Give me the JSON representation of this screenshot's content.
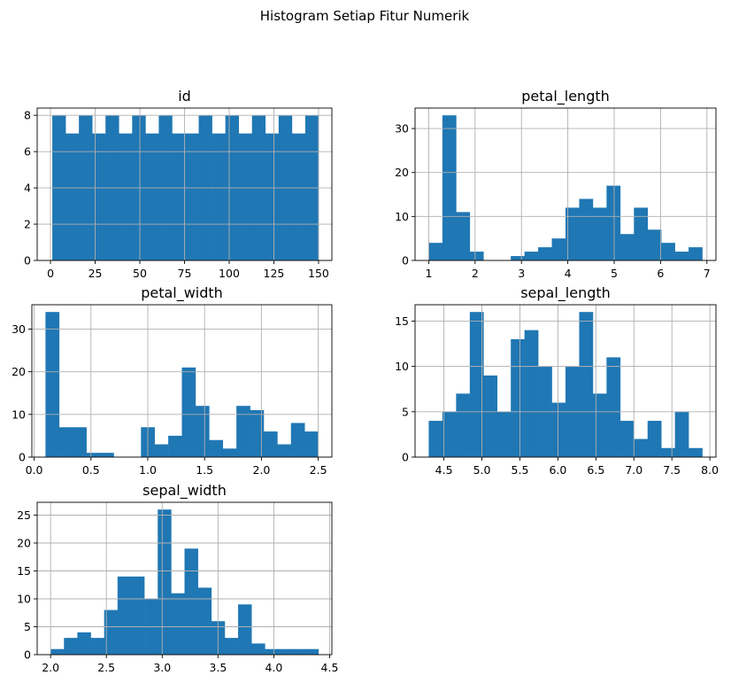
{
  "figure_title": "Histogram Setiap Fitur Numerik",
  "style": {
    "bar_color": "#1f77b4",
    "grid_color": "#b0b0b0",
    "background": "#ffffff"
  },
  "chart_data": [
    {
      "type": "bar",
      "title": "id",
      "grid": true,
      "xlim": [
        -7.45,
        157.45
      ],
      "ylim": [
        0,
        8.4
      ],
      "bin_edges": [
        1,
        8.45,
        15.9,
        23.35,
        30.8,
        38.25,
        45.7,
        53.15,
        60.6,
        68.05,
        75.5,
        82.95,
        90.4,
        97.85,
        105.3,
        112.75,
        120.2,
        127.65,
        135.1,
        142.55,
        150
      ],
      "counts": [
        8,
        7,
        8,
        7,
        8,
        7,
        8,
        7,
        8,
        7,
        7,
        8,
        7,
        8,
        7,
        8,
        7,
        8,
        7,
        8
      ],
      "xticks": [
        0,
        25,
        50,
        75,
        100,
        125,
        150
      ],
      "xtick_labels": [
        "0",
        "25",
        "50",
        "75",
        "100",
        "125",
        "150"
      ],
      "yticks": [
        0,
        2,
        4,
        6,
        8
      ],
      "ytick_labels": [
        "0",
        "2",
        "4",
        "6",
        "8"
      ]
    },
    {
      "type": "bar",
      "title": "petal_length",
      "grid": true,
      "xlim": [
        0.705,
        7.195
      ],
      "ylim": [
        0,
        34.65
      ],
      "bin_edges": [
        1,
        1.295,
        1.59,
        1.885,
        2.18,
        2.475,
        2.77,
        3.065,
        3.36,
        3.655,
        3.95,
        4.245,
        4.54,
        4.835,
        5.13,
        5.425,
        5.72,
        6.015,
        6.31,
        6.605,
        6.9
      ],
      "counts": [
        4,
        33,
        11,
        2,
        0,
        0,
        1,
        2,
        3,
        5,
        12,
        14,
        12,
        17,
        6,
        12,
        7,
        4,
        2,
        3
      ],
      "xticks": [
        1,
        2,
        3,
        4,
        5,
        6,
        7
      ],
      "xtick_labels": [
        "1",
        "2",
        "3",
        "4",
        "5",
        "6",
        "7"
      ],
      "yticks": [
        0,
        10,
        20,
        30
      ],
      "ytick_labels": [
        "0",
        "10",
        "20",
        "30"
      ]
    },
    {
      "type": "bar",
      "title": "petal_width",
      "grid": true,
      "xlim": [
        -0.02,
        2.62
      ],
      "ylim": [
        0,
        35.7
      ],
      "bin_edges": [
        0.1,
        0.22,
        0.34,
        0.46,
        0.58,
        0.7,
        0.82,
        0.94,
        1.06,
        1.18,
        1.3,
        1.42,
        1.54,
        1.66,
        1.78,
        1.9,
        2.02,
        2.14,
        2.26,
        2.38,
        2.5
      ],
      "counts": [
        34,
        7,
        7,
        1,
        1,
        0,
        0,
        7,
        3,
        5,
        21,
        12,
        4,
        2,
        12,
        11,
        6,
        3,
        8,
        6
      ],
      "xticks": [
        0.0,
        0.5,
        1.0,
        1.5,
        2.0,
        2.5
      ],
      "xtick_labels": [
        "0.0",
        "0.5",
        "1.0",
        "1.5",
        "2.0",
        "2.5"
      ],
      "yticks": [
        0,
        10,
        20,
        30
      ],
      "ytick_labels": [
        "0",
        "10",
        "20",
        "30"
      ]
    },
    {
      "type": "bar",
      "title": "sepal_length",
      "grid": true,
      "xlim": [
        4.12,
        8.08
      ],
      "ylim": [
        0,
        16.8
      ],
      "bin_edges": [
        4.3,
        4.48,
        4.66,
        4.84,
        5.02,
        5.2,
        5.38,
        5.56,
        5.74,
        5.92,
        6.1,
        6.28,
        6.46,
        6.64,
        6.82,
        7.0,
        7.18,
        7.36,
        7.54,
        7.72,
        7.9
      ],
      "counts": [
        4,
        5,
        7,
        16,
        9,
        5,
        13,
        14,
        10,
        6,
        10,
        16,
        7,
        11,
        4,
        2,
        4,
        1,
        5,
        1
      ],
      "xticks": [
        4.5,
        5.0,
        5.5,
        6.0,
        6.5,
        7.0,
        7.5,
        8.0
      ],
      "xtick_labels": [
        "4.5",
        "5.0",
        "5.5",
        "6.0",
        "6.5",
        "7.0",
        "7.5",
        "8.0"
      ],
      "yticks": [
        0,
        5,
        10,
        15
      ],
      "ytick_labels": [
        "0",
        "5",
        "10",
        "15"
      ]
    },
    {
      "type": "bar",
      "title": "sepal_width",
      "grid": true,
      "xlim": [
        1.88,
        4.52
      ],
      "ylim": [
        0,
        27.3
      ],
      "bin_edges": [
        2.0,
        2.12,
        2.24,
        2.36,
        2.48,
        2.6,
        2.72,
        2.84,
        2.96,
        3.08,
        3.2,
        3.32,
        3.44,
        3.56,
        3.68,
        3.8,
        3.92,
        4.04,
        4.16,
        4.28,
        4.4
      ],
      "counts": [
        1,
        3,
        4,
        3,
        8,
        14,
        14,
        10,
        26,
        11,
        19,
        12,
        6,
        3,
        9,
        2,
        1,
        1,
        1,
        1
      ],
      "xticks": [
        2.0,
        2.5,
        3.0,
        3.5,
        4.0,
        4.5
      ],
      "xtick_labels": [
        "2.0",
        "2.5",
        "3.0",
        "3.5",
        "4.0",
        "4.5"
      ],
      "yticks": [
        0,
        5,
        10,
        15,
        20,
        25
      ],
      "ytick_labels": [
        "0",
        "5",
        "10",
        "15",
        "20",
        "25"
      ]
    }
  ]
}
